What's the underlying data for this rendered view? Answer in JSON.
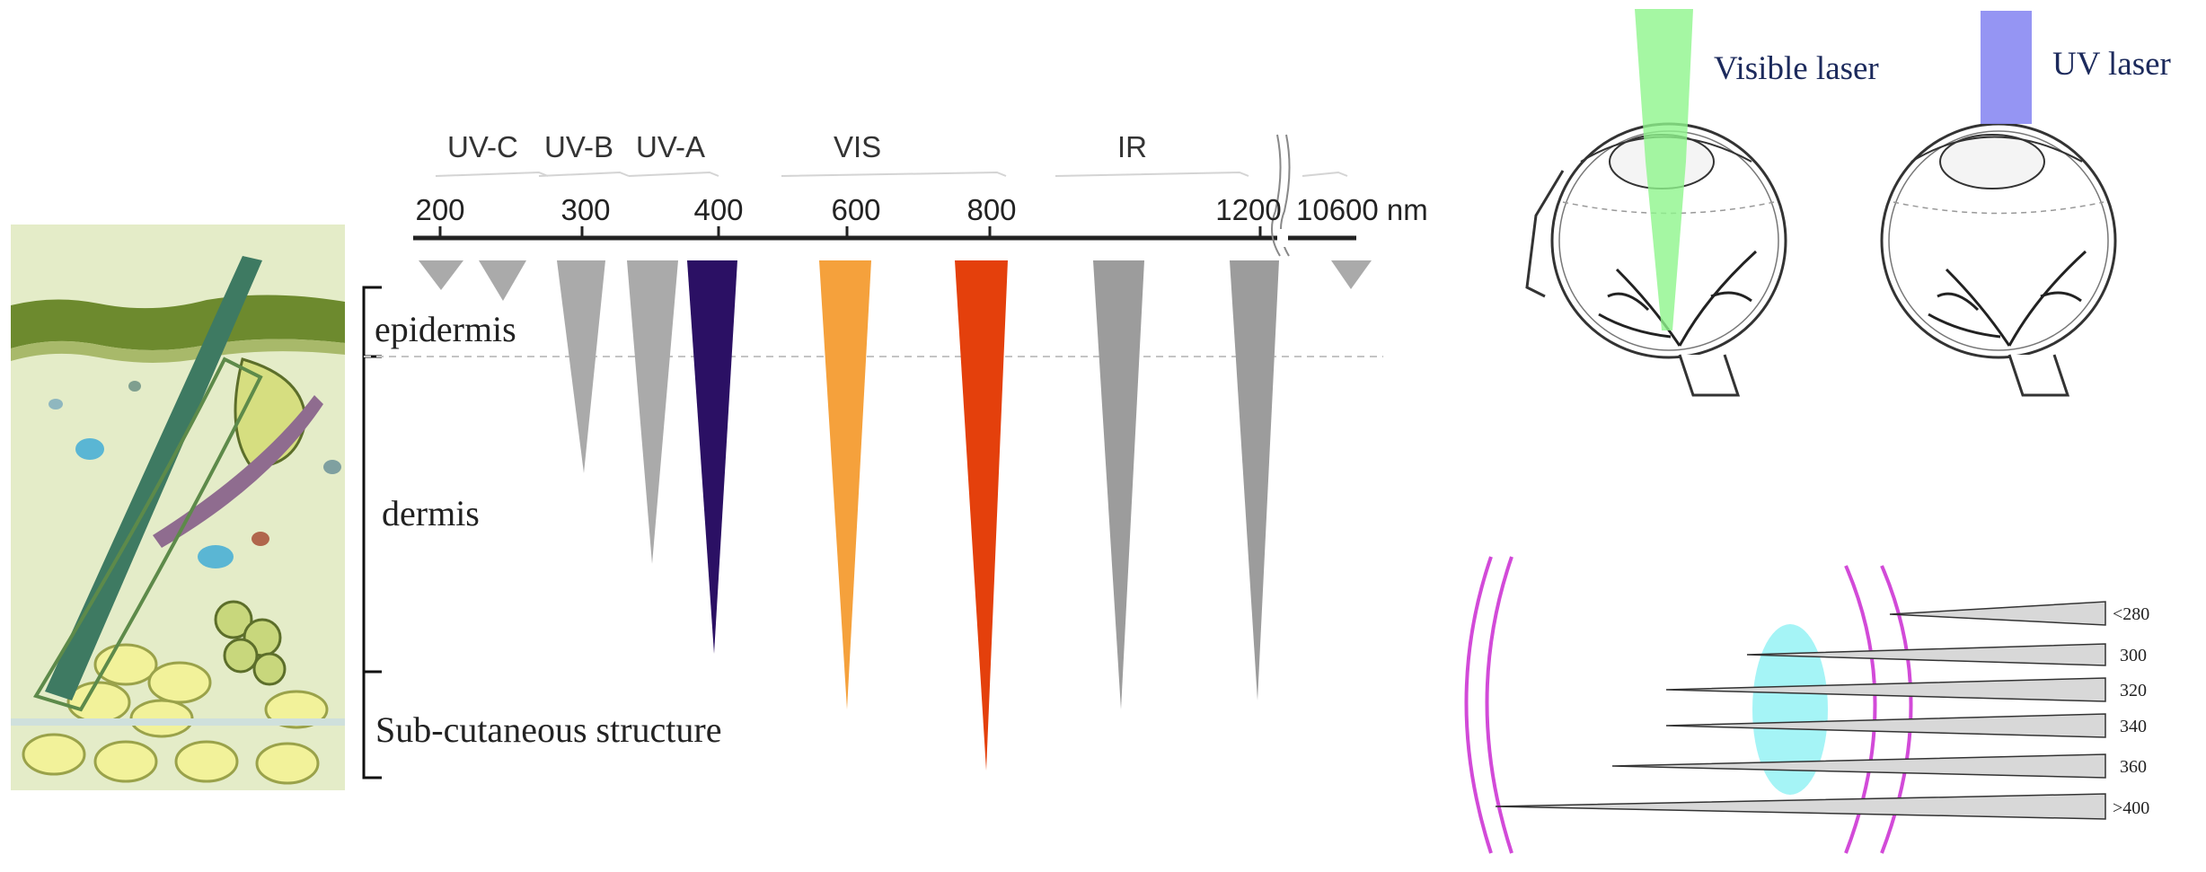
{
  "spectrum": {
    "bands": [
      "UV-C",
      "UV-B",
      "UV-A",
      "VIS",
      "IR"
    ],
    "axis_ticks": [
      "200",
      "300",
      "400",
      "600",
      "800",
      "1200"
    ],
    "axis_end_label": "10600 nm",
    "colors": {
      "uv_gray": "#aaaaaa",
      "uva": "#2b1064",
      "vis": "#f5a13c",
      "red": "#e4400c",
      "ir_gray": "#9c9c9c",
      "axis": "#222222",
      "band_text": "#333333"
    }
  },
  "skin": {
    "layers": [
      "epidermis",
      "dermis",
      "Sub-cutaneous structure"
    ],
    "colors": {
      "background": "#e4ecc8",
      "epidermis": "#6d8a2e",
      "hair": "#3e7a62",
      "fat": "#f2f29a",
      "vessel": "#5ab6d4"
    }
  },
  "eye": {
    "visible_label": "Visible laser",
    "uv_label": "UV laser",
    "colors": {
      "visible_beam": "#8ef58c",
      "uv_beam": "#8f8ff2",
      "label": "#1c2a5c"
    }
  },
  "lens_diagram": {
    "labels": [
      "<280",
      "300",
      "320",
      "340",
      "360",
      ">400"
    ],
    "colors": {
      "arcs": "#d24ad8",
      "lens": "#8ff1f4",
      "wedge": "#d8d8d8"
    }
  }
}
